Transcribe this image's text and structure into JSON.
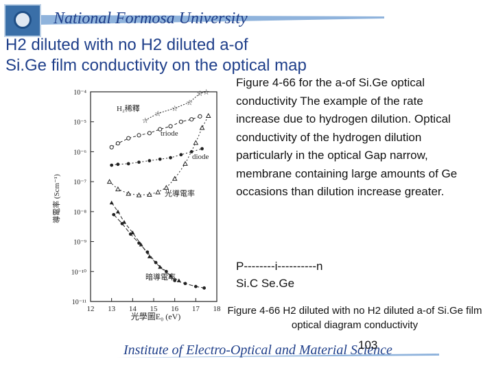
{
  "header": {
    "university": "National Formosa University"
  },
  "title": {
    "line1": "H2 diluted with no H2 diluted a-of",
    "line2": "Si.Ge film conductivity on the optical map"
  },
  "description": "Figure 4-66 for the a-of Si.Ge optical conductivity The example of the rate increase due to hydrogen dilution. Optical conductivity of the hydrogen dilution particularly in the optical Gap narrow, membrane containing large amounts of Ge occasions than dilution increase greater.",
  "pin": {
    "line1": "P--------i----------n",
    "line2": "Si.C   Se.Ge"
  },
  "caption": "Figure 4-66 H2 diluted with no H2 diluted a-of Si.Ge film optical diagram conductivity",
  "footer": {
    "institute": "Institute of Electro-Optical and Material Science",
    "page": "103"
  },
  "colors": {
    "title_blue": "#1f3f8a",
    "logo_blue": "#3a6fa8"
  },
  "chart_data": {
    "type": "scatter",
    "title": "",
    "xlabel": "光學圖E₀ (eV)",
    "ylabel": "導電率 (Scm⁻¹)",
    "xlim": [
      1.2,
      1.8
    ],
    "ylog": true,
    "ylim_exp": [
      -11,
      -4
    ],
    "xticks": [
      "12",
      "13",
      "14",
      "15",
      "16",
      "17",
      "18"
    ],
    "yticks": [
      "10⁻⁴",
      "10⁻⁵",
      "10⁻⁶",
      "10⁻⁷",
      "10⁻⁸",
      "10⁻⁹",
      "10⁻¹⁰",
      "10⁻¹¹"
    ],
    "annotations": [
      "H₂稀釋",
      "triode",
      "diode",
      "光導電率",
      "暗導電率"
    ],
    "series": [
      {
        "marker": "star",
        "values": [
          [
            1.46,
            -4.95
          ],
          [
            1.52,
            -4.72
          ],
          [
            1.6,
            -4.55
          ],
          [
            1.67,
            -4.35
          ],
          [
            1.72,
            -4.05
          ],
          [
            1.75,
            -4.0
          ]
        ]
      },
      {
        "marker": "circle-open",
        "values": [
          [
            1.3,
            -5.85
          ],
          [
            1.33,
            -5.72
          ],
          [
            1.38,
            -5.55
          ],
          [
            1.43,
            -5.45
          ],
          [
            1.48,
            -5.38
          ],
          [
            1.53,
            -5.25
          ],
          [
            1.58,
            -5.15
          ],
          [
            1.63,
            -5.0
          ],
          [
            1.68,
            -4.92
          ],
          [
            1.72,
            -4.82
          ]
        ]
      },
      {
        "marker": "dot",
        "values": [
          [
            1.3,
            -6.45
          ],
          [
            1.33,
            -6.42
          ],
          [
            1.38,
            -6.4
          ],
          [
            1.43,
            -6.35
          ],
          [
            1.48,
            -6.3
          ],
          [
            1.53,
            -6.25
          ],
          [
            1.58,
            -6.2
          ],
          [
            1.63,
            -6.1
          ],
          [
            1.68,
            -6.0
          ],
          [
            1.73,
            -5.9
          ]
        ]
      },
      {
        "marker": "triangle-open",
        "values": [
          [
            1.29,
            -7.0
          ],
          [
            1.33,
            -7.25
          ],
          [
            1.38,
            -7.4
          ],
          [
            1.43,
            -7.45
          ],
          [
            1.48,
            -7.43
          ],
          [
            1.52,
            -7.35
          ],
          [
            1.56,
            -7.2
          ],
          [
            1.6,
            -6.9
          ],
          [
            1.65,
            -6.4
          ],
          [
            1.7,
            -5.7
          ],
          [
            1.73,
            -5.2
          ],
          [
            1.76,
            -4.8
          ]
        ]
      },
      {
        "marker": "triangle-filled",
        "values": [
          [
            1.3,
            -7.7
          ],
          [
            1.33,
            -8.0
          ],
          [
            1.36,
            -8.35
          ],
          [
            1.4,
            -8.7
          ],
          [
            1.44,
            -9.1
          ],
          [
            1.48,
            -9.5
          ],
          [
            1.53,
            -9.85
          ],
          [
            1.58,
            -10.15
          ],
          [
            1.62,
            -10.3
          ]
        ]
      },
      {
        "marker": "dot-dark",
        "values": [
          [
            1.31,
            -8.1
          ],
          [
            1.35,
            -8.4
          ],
          [
            1.39,
            -8.75
          ],
          [
            1.43,
            -9.05
          ],
          [
            1.47,
            -9.35
          ],
          [
            1.51,
            -9.7
          ],
          [
            1.56,
            -10.0
          ],
          [
            1.6,
            -10.3
          ],
          [
            1.65,
            -10.4
          ],
          [
            1.7,
            -10.5
          ],
          [
            1.74,
            -10.55
          ]
        ]
      }
    ]
  }
}
